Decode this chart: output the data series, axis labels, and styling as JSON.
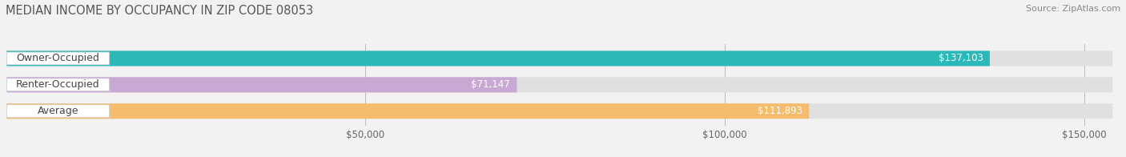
{
  "title": "MEDIAN INCOME BY OCCUPANCY IN ZIP CODE 08053",
  "source": "Source: ZipAtlas.com",
  "categories": [
    "Owner-Occupied",
    "Renter-Occupied",
    "Average"
  ],
  "values": [
    137103,
    71147,
    111893
  ],
  "bar_colors": [
    "#2ab8b8",
    "#c9a8d4",
    "#f5bc6e"
  ],
  "value_labels": [
    "$137,103",
    "$71,147",
    "$111,893"
  ],
  "x_tick_labels": [
    "$50,000",
    "$100,000",
    "$150,000"
  ],
  "x_ticks": [
    50000,
    100000,
    150000
  ],
  "xlim": [
    0,
    155000
  ],
  "title_fontsize": 10.5,
  "source_fontsize": 8,
  "label_fontsize": 9,
  "value_fontsize": 8.5,
  "background_color": "#f2f2f2",
  "bar_background_color": "#e0e0e0"
}
